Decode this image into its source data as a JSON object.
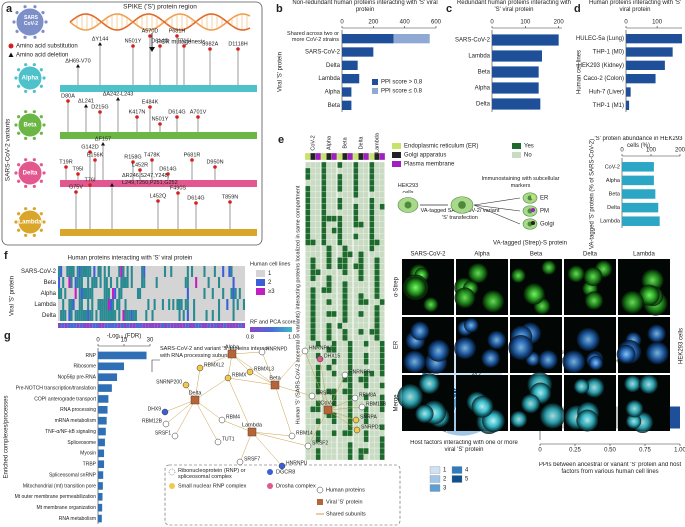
{
  "panel_labels": [
    "a",
    "b",
    "c",
    "d",
    "e",
    "f",
    "g",
    "h",
    "i"
  ],
  "panel_a": {
    "virus_label": "SARS CoV-2",
    "title": "SPIKE ('S') protein region",
    "step": "PCR mutagenesis",
    "legend": [
      "Amino acid substitution",
      "Amino acid deletion"
    ],
    "ylabel": "SARS-CoV-2 variants",
    "variants": [
      {
        "name": "Alpha",
        "color": "#4fc1cb",
        "deletions": [
          "ΔH69-V70",
          "ΔY144"
        ],
        "substitutions": [
          "A570D",
          "N501Y",
          "D614G",
          "P681H",
          "T716I",
          "S982A",
          "D1118H"
        ]
      },
      {
        "name": "Beta",
        "color": "#6cb646",
        "deletions": [
          "ΔL241",
          "ΔA242-L243"
        ],
        "substitutions": [
          "D80A",
          "D215G",
          "K417N",
          "E484K",
          "N501Y",
          "D614G",
          "A701V"
        ]
      },
      {
        "name": "Delta",
        "color": "#e2578e",
        "deletions": [
          "ΔF157"
        ],
        "substitutions": [
          "G142D",
          "E156K",
          "T19R",
          "T95I",
          "R158G",
          "L452R",
          "T478K",
          "D614G",
          "P681R",
          "D950N"
        ]
      },
      {
        "name": "Lambda",
        "color": "#d9a62b",
        "deletions": [
          "ΔR246,S247,Y248, L249,T250,P251,G252"
        ],
        "substitutions": [
          "T76I",
          "G75V",
          "L452Q",
          "F490S",
          "D614G",
          "T859N"
        ]
      }
    ]
  },
  "panel_e": {
    "ylabel": "Human 'S' (SARS-CoV-2 ancestral or variants) interacting proteins localized in same compartment",
    "columns": [
      "CoV-2",
      "Alpha",
      "Beta",
      "Delta",
      "Lambda"
    ],
    "legend": [
      {
        "name": "Endoplasmic reticulum (ER)",
        "color": "#c6e46a"
      },
      {
        "name": "Golgi apparatus",
        "color": "#222222"
      },
      {
        "name": "Plasma membrane",
        "color": "#a11fc0"
      },
      {
        "name": "Yes",
        "color": "#1d6a2c"
      },
      {
        "name": "No",
        "color": "#c9dcc3"
      }
    ],
    "diagram": {
      "cells": "HEK293 cells",
      "transfection": "VA-tagged SARS-CoV-2/ variant 'S' transfection",
      "staining": "Immunostaining with subcellular markers",
      "markers": [
        "ER",
        "PM",
        "Golgi"
      ]
    },
    "imaging": {
      "title": "VA-tagged (Strep)-S protein",
      "columns": [
        "SARS-CoV-2",
        "Alpha",
        "Beta",
        "Delta",
        "Lambda"
      ],
      "rows": [
        "α-Strep",
        "ER",
        "Merge"
      ],
      "side": "HEK293 cells"
    }
  },
  "panel_f": {
    "title": "Human proteins interacting with 'S' viral protein",
    "ylabel": "Viral 'S' protein",
    "rows": [
      "SARS-CoV-2",
      "Beta",
      "Alpha",
      "Lambda",
      "Delta"
    ],
    "legend_title": "Human cell lines",
    "legend": [
      {
        "name": "1",
        "color": "#d4d4d4"
      },
      {
        "name": "2",
        "color": "#3b5fd8"
      },
      {
        "name": "≥3",
        "color": "#c21fc2"
      }
    ],
    "score_title": "RF and PCA score",
    "score_range": [
      0.8,
      {
        "value": 1,
        "label": "1.0"
      }
    ]
  },
  "panel_g_network": {
    "title": "SARS-CoV-2 and variant 'S' proteins interact with RNA processing subunits",
    "viral": [
      "Alpha",
      "Delta",
      "Beta",
      "Lambda",
      "CoV-2"
    ],
    "human": [
      "RBMXL2",
      "HNRNPD",
      "HNRNPA1",
      "DHX15",
      "HNRNPR",
      "SNRNP200",
      "RBMX",
      "RBMXL3",
      "SRSF3",
      "RBM8A",
      "RBM15B",
      "DHX9",
      "RBM12B",
      "SRSF1",
      "TUT1",
      "RBM4",
      "RBM14",
      "SNRPA",
      "SNRPD1",
      "SRSF7",
      "HNRNPU",
      "SRSF2"
    ],
    "legend": [
      "Ribonucleoprotein (RNP) or spliceosomal complex",
      "DGCR8",
      "Small nuclear RNP complex",
      "Drosha complex",
      "Human proteins",
      "Viral 'S' protein",
      "Shared subunits"
    ]
  },
  "chart_data": [
    {
      "type": "bar",
      "orientation": "horizontal",
      "title": "Non-redundant human proteins interacting with 'S' viral protein",
      "ylabel": "Viral 'S' protein",
      "categories": [
        "Shared across two or more CoV-2 strains",
        "SARS-CoV-2",
        "Delta",
        "Lambda",
        "Alpha",
        "Beta"
      ],
      "series": [
        {
          "name": "PPI score > 0.8",
          "color": "#1f4f99",
          "values": [
            330,
            200,
            100,
            110,
            60,
            60
          ]
        },
        {
          "name": "PPI score ≤ 0.8",
          "color": "#8fa8d4",
          "values": [
            230,
            0,
            0,
            0,
            0,
            0
          ]
        }
      ],
      "xlim": [
        0,
        600
      ],
      "xticks": [
        0,
        200,
        400,
        600
      ],
      "legend": "lower right"
    },
    {
      "type": "bar",
      "orientation": "horizontal",
      "title": "Redundant human proteins interacting with 'S' viral protein",
      "categories": [
        "SARS-CoV-2",
        "Lambda",
        "Beta",
        "Alpha",
        "Delta"
      ],
      "values": [
        200,
        150,
        140,
        140,
        145
      ],
      "color": "#1f4f99",
      "xlim": [
        0,
        210
      ],
      "xticks": [
        0,
        100,
        200
      ]
    },
    {
      "type": "bar",
      "orientation": "horizontal",
      "title": "Human proteins interacting with 'S' viral protein",
      "ylabel": "Human cell lines",
      "categories": [
        "HULEC-5a (Lung)",
        "THP-1 (M0)",
        "HEK293 (Kidney)",
        "Caco-2 (Colon)",
        "Huh-7 (Liver)",
        "THP-1 (M1)"
      ],
      "values": [
        180,
        150,
        125,
        95,
        15,
        10
      ],
      "color": "#1f4f99",
      "xlim": [
        0,
        180
      ],
      "xticks": [
        0,
        100
      ]
    },
    {
      "type": "bar",
      "orientation": "horizontal",
      "title": "'S' protein abundance in HEK293 cells (%)",
      "ylabel": "VA-tagged 'S' protein (% of SARS-CoV-2)",
      "categories": [
        "CoV-2",
        "Alpha",
        "Beta",
        "Delta",
        "Lambda"
      ],
      "values": [
        110,
        110,
        115,
        125,
        130
      ],
      "color": "#2ba6c4",
      "xlim": [
        0,
        200
      ],
      "xticks": [
        0,
        100,
        200
      ]
    },
    {
      "type": "bar",
      "orientation": "horizontal",
      "xlabel": "-Log₁₀ (FDR)",
      "ylabel": "Enriched complexes/processes",
      "categories": [
        "RNP",
        "Ribosome",
        "Nop56p pre-RNA",
        "Pre-NOTCH transcription/translation",
        "COPI anterograde transport",
        "RNA processing",
        "mRNA metabolism",
        "TNF-α/NF-kB signaling",
        "Spliceosome",
        "Myosin",
        "TRBP",
        "Spliceosomal snRNP",
        "Mitochondrial (mt) transition pore",
        "Mt outer membrane permeabilization",
        "Mt membrane organization",
        "RNA metabolism"
      ],
      "values": [
        28,
        15,
        11,
        8,
        6,
        5.5,
        5,
        4.5,
        4,
        3.5,
        3.5,
        3,
        2.8,
        2.6,
        2.4,
        2.2
      ],
      "color": "#2f6fb5",
      "xlim": [
        0,
        30
      ],
      "xticks": [
        0,
        15,
        30
      ]
    },
    {
      "type": "pie",
      "caption": "Host factors interacting with one or more viral 'S' protein",
      "categories": [
        "1",
        "2",
        "3",
        "4",
        "5",
        null
      ],
      "values": [
        342,
        105,
        49,
        48,
        40,
        27
      ],
      "colors": [
        "#cfe2f3",
        "#a2c6e6",
        "#5d9fd5",
        "#2e7cc0",
        "#0e4f90",
        "#1f66a8"
      ]
    },
    {
      "type": "bar",
      "orientation": "horizontal",
      "xlabel": "PPIs between ancestral or variant 'S' protein and host factors from various human cell lines",
      "categories": [
        null
      ],
      "series": [
        {
          "name": "Unique to this study",
          "color": "#c4c4c4",
          "values": [
            0.88
          ]
        },
        {
          "name": "Overlap with Bouhaddou et al (2023)",
          "color": "#1f4f99",
          "values": [
            0.12
          ]
        }
      ],
      "xlim": [
        0,
        1
      ],
      "xticks": [
        0,
        0.25,
        {
          "value": 0.5,
          "label": "0.50"
        },
        0.75,
        {
          "value": 1,
          "label": "1.00"
        }
      ],
      "legend": "top"
    }
  ]
}
